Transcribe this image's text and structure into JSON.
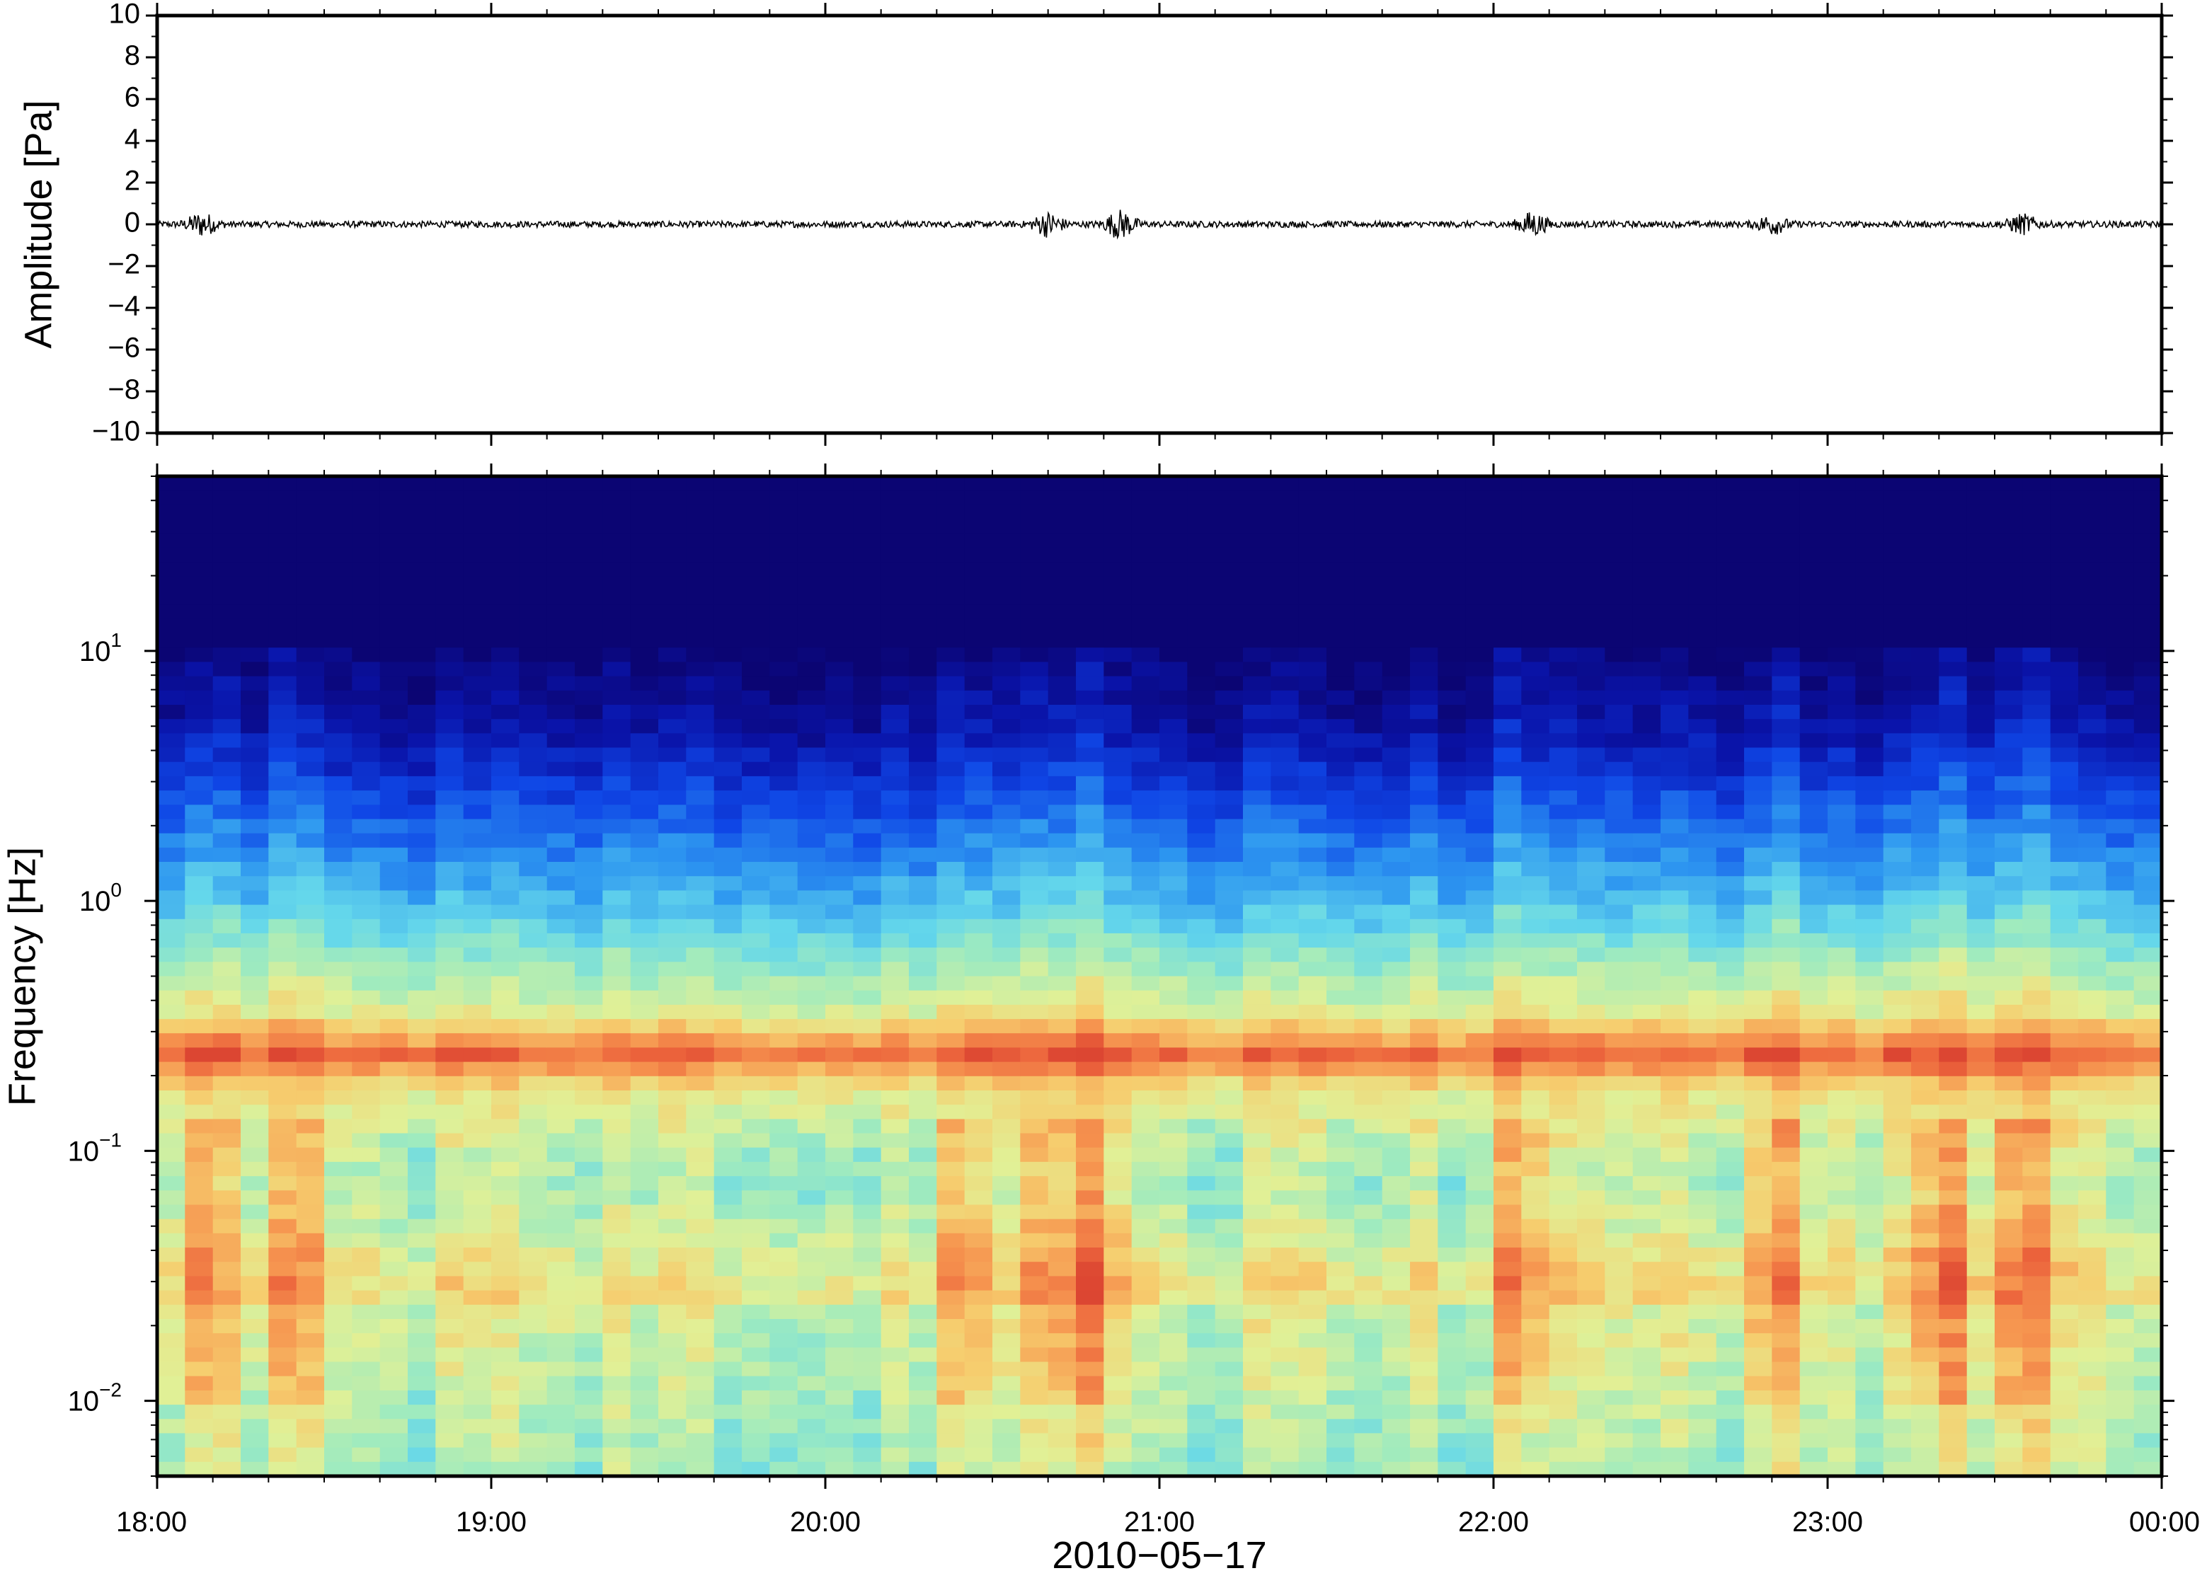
{
  "chart_data": [
    {
      "type": "line",
      "ylabel": "Amplitude [Pa]",
      "ylim": [
        -10,
        10
      ],
      "yticks": [
        10,
        8,
        6,
        4,
        2,
        0,
        -2,
        -4,
        -6,
        -8,
        -10
      ],
      "ytick_labels": [
        "10",
        "8",
        "6",
        "4",
        "2",
        "0",
        "−2",
        "−4",
        "−6",
        "−8",
        "−10"
      ],
      "xlim": [
        "18:00",
        "00:00"
      ],
      "series": [
        {
          "color": "#000000",
          "description_values": "Near-zero pressure trace; bursts with peak amplitude about 0.5 Pa",
          "bursts": [
            {
              "time": "18:08",
              "amplitude": 0.5
            },
            {
              "time": "20:40",
              "amplitude": 0.5
            },
            {
              "time": "20:53",
              "amplitude": 0.6
            },
            {
              "time": "22:07",
              "amplitude": 0.5
            },
            {
              "time": "22:50",
              "amplitude": 0.4
            },
            {
              "time": "23:35",
              "amplitude": 0.4
            }
          ],
          "baseline_amplitude": 0.15
        }
      ]
    },
    {
      "type": "heatmap",
      "ylabel": "Frequency [Hz]",
      "yscale": "log",
      "ylim": [
        0.005,
        50
      ],
      "yticks": [
        {
          "base": "10",
          "exp": "1",
          "value": 10
        },
        {
          "base": "10",
          "exp": "0",
          "value": 1
        },
        {
          "base": "10",
          "exp": "−1",
          "value": 0.1
        },
        {
          "base": "10",
          "exp": "−2",
          "value": 0.01
        }
      ],
      "xlabel": "2010−05−17",
      "xticks": [
        "18:00",
        "19:00",
        "20:00",
        "21:00",
        "22:00",
        "23:00",
        "00:00"
      ],
      "colormap": "jet",
      "microbarom_peak_hz": 0.18,
      "high_energy_columns": [
        "18:08",
        "18:25",
        "20:25",
        "20:40",
        "20:48",
        "22:05",
        "22:50",
        "23:20",
        "23:35"
      ]
    }
  ]
}
